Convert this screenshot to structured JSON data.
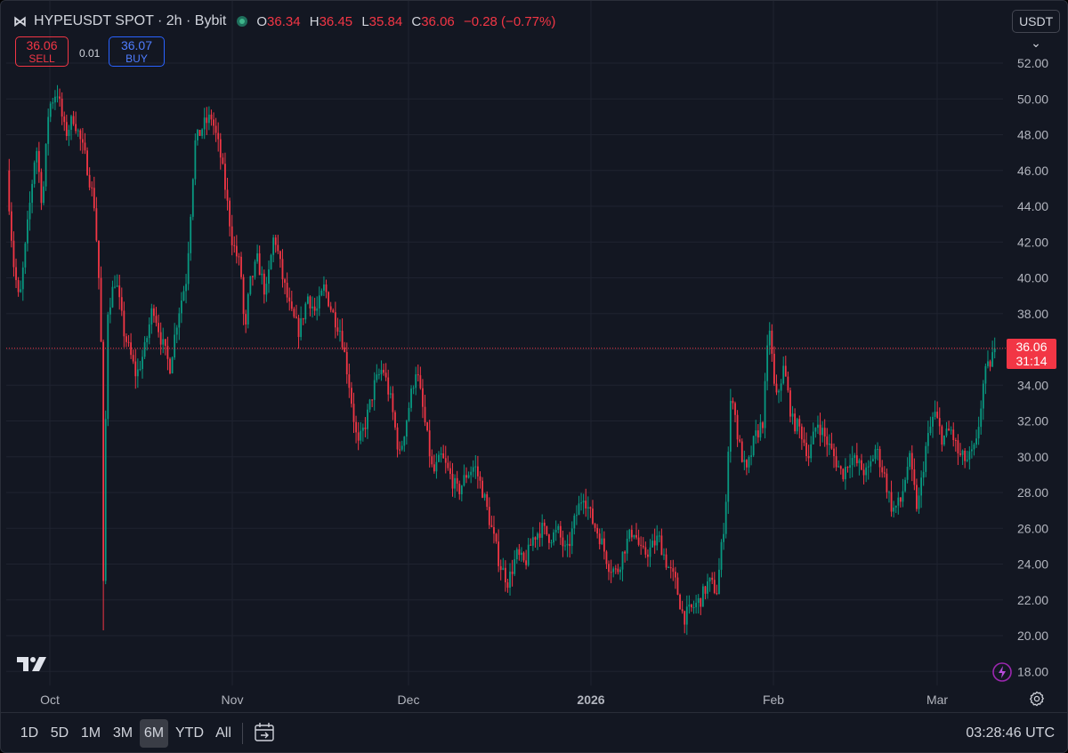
{
  "header": {
    "symbol": "HYPEUSDT SPOT · 2h · Bybit",
    "ohlc": [
      {
        "key": "O",
        "value": "36.34"
      },
      {
        "key": "H",
        "value": "36.45"
      },
      {
        "key": "L",
        "value": "35.84"
      },
      {
        "key": "C",
        "value": "36.06"
      }
    ],
    "change": "−0.28 (−0.77%)"
  },
  "trade": {
    "sell_price": "36.06",
    "sell_label": "SELL",
    "spread": "0.01",
    "buy_price": "36.07",
    "buy_label": "BUY"
  },
  "currency": "USDT",
  "last_price": {
    "value": "36.06",
    "countdown": "31:14"
  },
  "ranges": [
    "1D",
    "5D",
    "1M",
    "3M",
    "6M",
    "YTD",
    "All"
  ],
  "active_range": "6M",
  "clock": "03:28:46 UTC",
  "colors": {
    "background": "#131722",
    "up": "#089981",
    "down": "#f23645",
    "grid": "#1f2330",
    "text": "#d1d4dc"
  },
  "chart_data": {
    "type": "candlestick",
    "price_axis": {
      "ticks": [
        "52.00",
        "50.00",
        "48.00",
        "46.00",
        "44.00",
        "42.00",
        "40.00",
        "38.00",
        "36.00",
        "34.00",
        "32.00",
        "30.00",
        "28.00",
        "26.00",
        "24.00",
        "22.00",
        "20.00",
        "18.00"
      ],
      "min": 18,
      "max": 52
    },
    "time_axis": {
      "labels": [
        "Oct",
        "Nov",
        "Dec",
        "2026",
        "Feb",
        "Mar"
      ]
    },
    "last_price": 36.06,
    "grid": true,
    "path": [
      [
        0,
        46
      ],
      [
        1.5,
        41
      ],
      [
        3,
        38.5
      ],
      [
        5,
        43
      ],
      [
        7,
        47.5
      ],
      [
        8.5,
        44
      ],
      [
        10,
        49.5
      ],
      [
        12,
        50.5
      ],
      [
        14,
        48
      ],
      [
        16,
        49
      ],
      [
        19,
        46.5
      ],
      [
        21,
        44
      ],
      [
        22.5,
        38
      ],
      [
        23,
        21
      ],
      [
        24,
        38
      ],
      [
        26,
        40
      ],
      [
        28,
        37
      ],
      [
        31,
        34.5
      ],
      [
        33,
        36
      ],
      [
        35,
        38.5
      ],
      [
        37,
        36.5
      ],
      [
        39,
        35
      ],
      [
        41,
        38
      ],
      [
        43,
        40
      ],
      [
        45,
        47.5
      ],
      [
        47,
        48.5
      ],
      [
        49,
        49
      ],
      [
        51,
        47
      ],
      [
        52,
        45.5
      ],
      [
        54,
        42
      ],
      [
        56,
        40.5
      ],
      [
        57,
        36.5
      ],
      [
        58,
        39.5
      ],
      [
        60,
        41
      ],
      [
        62,
        39
      ],
      [
        64,
        42.5
      ],
      [
        66,
        40
      ],
      [
        68,
        38
      ],
      [
        70,
        37
      ],
      [
        72,
        39
      ],
      [
        74,
        38
      ],
      [
        76,
        39.5
      ],
      [
        78,
        38
      ],
      [
        80,
        37
      ],
      [
        82,
        34
      ],
      [
        84,
        30.5
      ],
      [
        86,
        32
      ],
      [
        88,
        34
      ],
      [
        90,
        35
      ],
      [
        92,
        33
      ],
      [
        94,
        30
      ],
      [
        96,
        32.5
      ],
      [
        98,
        35
      ],
      [
        100,
        32
      ],
      [
        102,
        29
      ],
      [
        104,
        30
      ],
      [
        106,
        29
      ],
      [
        108,
        28
      ],
      [
        110,
        29
      ],
      [
        112,
        29.5
      ],
      [
        114,
        28
      ],
      [
        116,
        26
      ],
      [
        118,
        24
      ],
      [
        120,
        23
      ],
      [
        122,
        24.5
      ],
      [
        124,
        24
      ],
      [
        126,
        25.5
      ],
      [
        128,
        26
      ],
      [
        130,
        25.5
      ],
      [
        132,
        25.8
      ],
      [
        134,
        24.5
      ],
      [
        136,
        26.5
      ],
      [
        138,
        28
      ],
      [
        140,
        26.5
      ],
      [
        142,
        25.5
      ],
      [
        144,
        24
      ],
      [
        146,
        23.5
      ],
      [
        148,
        25
      ],
      [
        150,
        26
      ],
      [
        152,
        24.5
      ],
      [
        154,
        24.8
      ],
      [
        156,
        25.5
      ],
      [
        158,
        24
      ],
      [
        160,
        23
      ],
      [
        162,
        21
      ],
      [
        164,
        21.5
      ],
      [
        166,
        22
      ],
      [
        168,
        23
      ],
      [
        170,
        22.5
      ],
      [
        172,
        27
      ],
      [
        173.5,
        34
      ],
      [
        175,
        31
      ],
      [
        177,
        29
      ],
      [
        179,
        31
      ],
      [
        181,
        32
      ],
      [
        182.5,
        37.5
      ],
      [
        184,
        33
      ],
      [
        186,
        35
      ],
      [
        188,
        32
      ],
      [
        190,
        31.5
      ],
      [
        192,
        30
      ],
      [
        194,
        32
      ],
      [
        196,
        31
      ],
      [
        198,
        30
      ],
      [
        200,
        29
      ],
      [
        202,
        30
      ],
      [
        204,
        29.5
      ],
      [
        206,
        29
      ],
      [
        208,
        30.5
      ],
      [
        210,
        29
      ],
      [
        212,
        27
      ],
      [
        214,
        27.5
      ],
      [
        216,
        30
      ],
      [
        218,
        27
      ],
      [
        220,
        30.5
      ],
      [
        222,
        32.5
      ],
      [
        224,
        31
      ],
      [
        226,
        31.5
      ],
      [
        228,
        30
      ],
      [
        230,
        29.8
      ],
      [
        232,
        30.5
      ],
      [
        234,
        34.5
      ],
      [
        235,
        35
      ],
      [
        236.5,
        36.06
      ]
    ]
  }
}
